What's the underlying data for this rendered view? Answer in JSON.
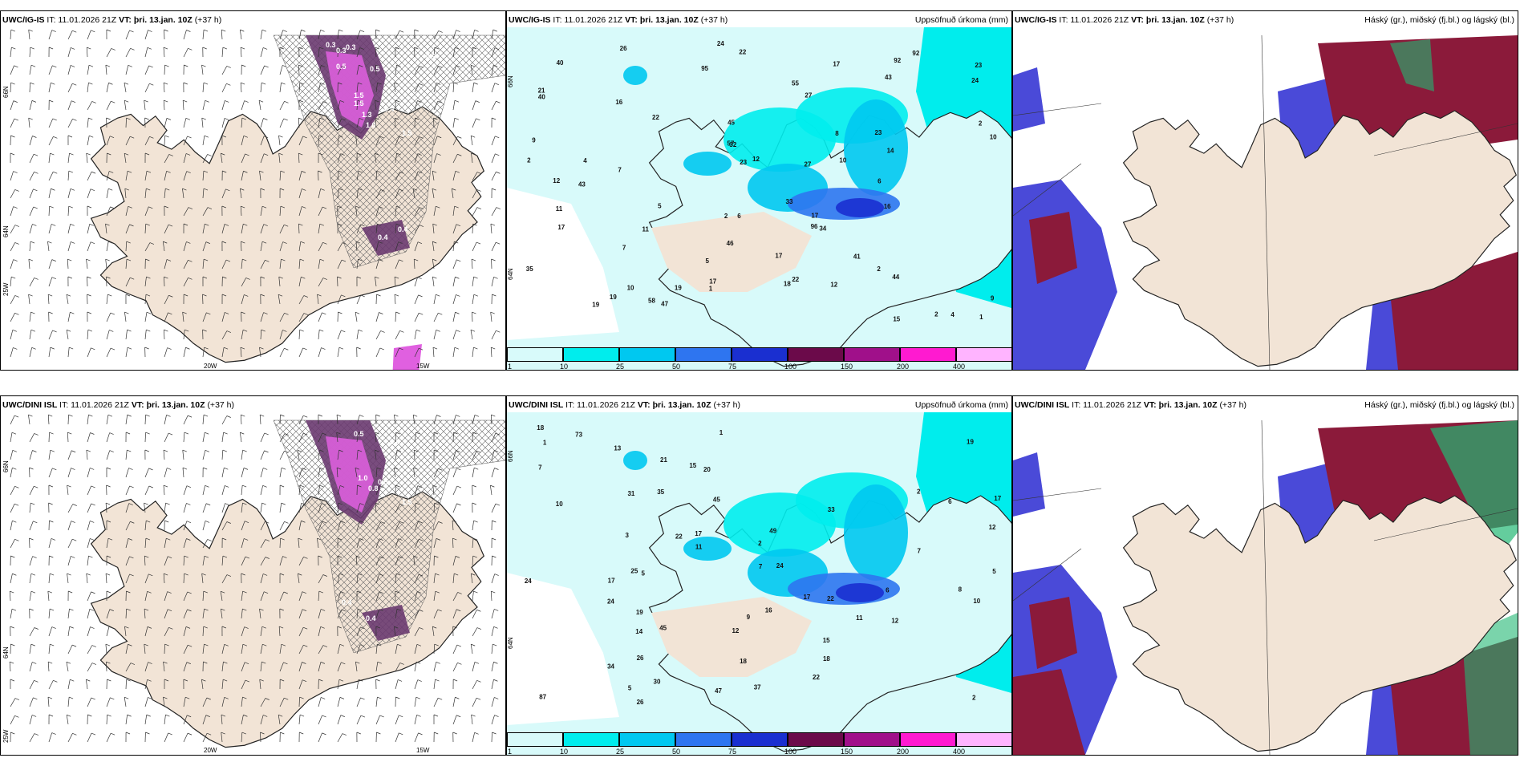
{
  "panels": [
    {
      "id": "p1",
      "model": "UWC/IG-IS",
      "it": "IT: 11.01.2026 21Z",
      "vt_label": "VT:",
      "vt": "þri. 13.jan. 10Z",
      "lead": "(+37 h)",
      "right_title": "",
      "coords": {
        "lat1": "66N",
        "lat2": "64N",
        "lon1": "25W",
        "lon2": "20W",
        "lon3": "15W"
      },
      "contour_labels": [
        "0.3",
        "0.3",
        "0.3",
        "0.5",
        "0.5",
        "1.5",
        "1.5",
        "1.3",
        "1.0",
        "0.4",
        "1.5",
        "0.3",
        "0.4",
        "0.4"
      ]
    },
    {
      "id": "p2",
      "model": "UWC/IG-IS",
      "it": "IT: 11.01.2026 21Z",
      "vt_label": "VT:",
      "vt": "þri. 13.jan. 10Z",
      "lead": "(+37 h)",
      "right_title": "Uppsöfnuð úrkoma (mm)",
      "coords": {
        "lat1": "66N",
        "lat2": "64N"
      },
      "values": [
        "2",
        "22",
        "23",
        "23",
        "21",
        "2",
        "43",
        "27",
        "45",
        "92",
        "12",
        "16",
        "24",
        "40",
        "16",
        "7",
        "22",
        "12",
        "33",
        "46",
        "41",
        "44",
        "24",
        "32",
        "10",
        "23",
        "17",
        "26",
        "47",
        "18",
        "11",
        "15",
        "27",
        "19",
        "58",
        "17",
        "14",
        "40",
        "19",
        "22",
        "17",
        "10",
        "9",
        "10",
        "6",
        "11",
        "43",
        "35",
        "17",
        "7",
        "8",
        "2",
        "34",
        "6",
        "12",
        "95",
        "96",
        "57",
        "92",
        "55",
        "2",
        "19",
        "2",
        "1",
        "4",
        "4",
        "5",
        "5",
        "1",
        "9",
        "17"
      ],
      "colorbar": [
        "1",
        "10",
        "25",
        "50",
        "75",
        "100",
        "150",
        "200",
        "400"
      ]
    },
    {
      "id": "p3",
      "model": "UWC/IG-IS",
      "it": "IT: 11.01.2026 21Z",
      "vt_label": "VT:",
      "vt": "þri. 13.jan. 10Z",
      "lead": "(+37 h)",
      "right_title": "Háský (gr.), miðský (fj.bl.) og lágský (bl.)"
    },
    {
      "id": "p4",
      "model": "UWC/DINI ISL",
      "it": "IT: 11.01.2026 21Z",
      "vt_label": "VT:",
      "vt": "þri. 13.jan. 10Z",
      "lead": "(+37 h)",
      "right_title": "",
      "coords": {
        "lat1": "66N",
        "lat2": "64N",
        "lon1": "25W",
        "lon2": "20W",
        "lon3": "15W"
      },
      "contour_labels": [
        "0.5",
        "0.6",
        "1.0",
        "0.8",
        "0.5",
        "1.5",
        "0.4",
        "0.4"
      ]
    },
    {
      "id": "p5",
      "model": "UWC/DINI ISL",
      "it": "IT: 11.01.2026 21Z",
      "vt_label": "VT:",
      "vt": "þri. 13.jan. 10Z",
      "lead": "(+37 h)",
      "right_title": "Uppsöfnuð úrkoma (mm)",
      "coords": {
        "lat1": "66N",
        "lat2": "64N"
      },
      "values": [
        "1",
        "18",
        "24",
        "19",
        "17",
        "15",
        "20",
        "45",
        "87",
        "11",
        "14",
        "24",
        "26",
        "24",
        "9",
        "22",
        "12",
        "34",
        "35",
        "17",
        "12",
        "18",
        "30",
        "25",
        "17",
        "16",
        "19",
        "12",
        "47",
        "15",
        "17",
        "21",
        "6",
        "10",
        "7",
        "3",
        "13",
        "11",
        "18",
        "33",
        "31",
        "37",
        "22",
        "45",
        "73",
        "49",
        "26",
        "7",
        "22",
        "10",
        "5",
        "5",
        "5",
        "8",
        "6",
        "7",
        "2",
        "2",
        "2",
        "1"
      ],
      "colorbar": [
        "1",
        "10",
        "25",
        "50",
        "75",
        "100",
        "150",
        "200",
        "400"
      ]
    },
    {
      "id": "p6",
      "model": "UWC/DINI ISL",
      "it": "IT: 11.01.2026 21Z",
      "vt_label": "VT:",
      "vt": "þri. 13.jan. 10Z",
      "lead": "(+37 h)",
      "right_title": "Háský (gr.), miðský (fj.bl.) og lágský (bl.)"
    }
  ],
  "colors": {
    "land": "#f2e4d6",
    "precip1": "#d8fafa",
    "precip10": "#00eded",
    "precip25": "#00c8f0",
    "precip50": "#2e75f0",
    "precip75": "#1a2fd0",
    "precip100": "#6b0a4a",
    "precip150": "#a0108a",
    "precip200": "#ff1ad0",
    "precip400": "#ffb4ff",
    "high_cloud": "#22b873",
    "mid_cloud": "#8b1a3a",
    "low_cloud": "#4a4ad8",
    "purple": "#6a3a70",
    "magenta": "#e060e0"
  }
}
